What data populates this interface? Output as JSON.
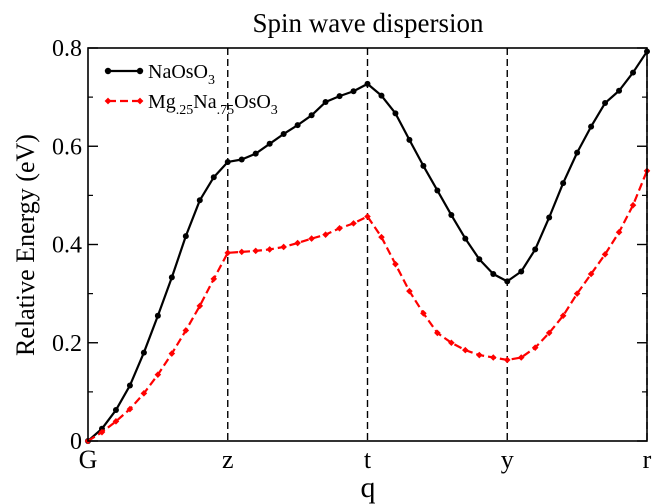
{
  "chart_data": {
    "type": "line",
    "title": "Spin wave dispersion",
    "xlabel": "q",
    "ylabel": "Relative Energy (eV)",
    "xlim": [
      0,
      40
    ],
    "ylim": [
      0,
      0.8
    ],
    "yticks": [
      0,
      0.2,
      0.4,
      0.6,
      0.8
    ],
    "ytick_labels": [
      "0",
      "0.2",
      "0.4",
      "0.6",
      "0.8"
    ],
    "xticks": [
      0,
      10,
      20,
      30,
      40
    ],
    "xtick_labels": [
      "G",
      "z",
      "t",
      "y",
      "r"
    ],
    "vlines": [
      10,
      20,
      30,
      40
    ],
    "grid": false,
    "legend_position": "top-left",
    "series": [
      {
        "name": "NaOsO3",
        "legend": {
          "base": "NaOsO",
          "sub": "3"
        },
        "color": "#000000",
        "style": "solid",
        "marker": "circle",
        "x": [
          0,
          1,
          2,
          3,
          4,
          5,
          6,
          7,
          8,
          9,
          10,
          11,
          12,
          13,
          14,
          15,
          16,
          17,
          18,
          19,
          20,
          21,
          22,
          23,
          24,
          25,
          26,
          27,
          28,
          29,
          30,
          31,
          32,
          33,
          34,
          35,
          36,
          37,
          38,
          39,
          40
        ],
        "values": [
          0.0,
          0.025,
          0.063,
          0.113,
          0.18,
          0.255,
          0.333,
          0.417,
          0.49,
          0.537,
          0.568,
          0.573,
          0.585,
          0.605,
          0.625,
          0.643,
          0.663,
          0.69,
          0.702,
          0.712,
          0.727,
          0.703,
          0.667,
          0.613,
          0.56,
          0.51,
          0.46,
          0.412,
          0.37,
          0.34,
          0.325,
          0.345,
          0.39,
          0.455,
          0.525,
          0.587,
          0.64,
          0.688,
          0.713,
          0.75,
          0.793
        ]
      },
      {
        "name": "Mg.25Na.75OsO3",
        "legend": {
          "parts": [
            [
              "Mg",
              ""
            ],
            [
              ".25",
              "sub"
            ],
            [
              "Na",
              ""
            ],
            [
              ".75",
              "sub"
            ],
            [
              "OsO",
              ""
            ],
            [
              "3",
              "sub"
            ]
          ]
        },
        "color": "#ff0000",
        "style": "dashed",
        "marker": "diamond",
        "x": [
          0,
          1,
          2,
          3,
          4,
          5,
          6,
          7,
          8,
          9,
          10,
          11,
          12,
          13,
          14,
          15,
          16,
          17,
          18,
          19,
          20,
          21,
          22,
          23,
          24,
          25,
          26,
          27,
          28,
          29,
          30,
          31,
          32,
          33,
          34,
          35,
          36,
          37,
          38,
          39,
          40
        ],
        "values": [
          0.0,
          0.018,
          0.04,
          0.065,
          0.097,
          0.135,
          0.178,
          0.225,
          0.275,
          0.33,
          0.383,
          0.385,
          0.387,
          0.39,
          0.395,
          0.403,
          0.412,
          0.42,
          0.433,
          0.443,
          0.457,
          0.415,
          0.36,
          0.305,
          0.26,
          0.22,
          0.2,
          0.185,
          0.175,
          0.17,
          0.165,
          0.17,
          0.19,
          0.22,
          0.255,
          0.3,
          0.34,
          0.38,
          0.425,
          0.48,
          0.55
        ]
      }
    ]
  }
}
